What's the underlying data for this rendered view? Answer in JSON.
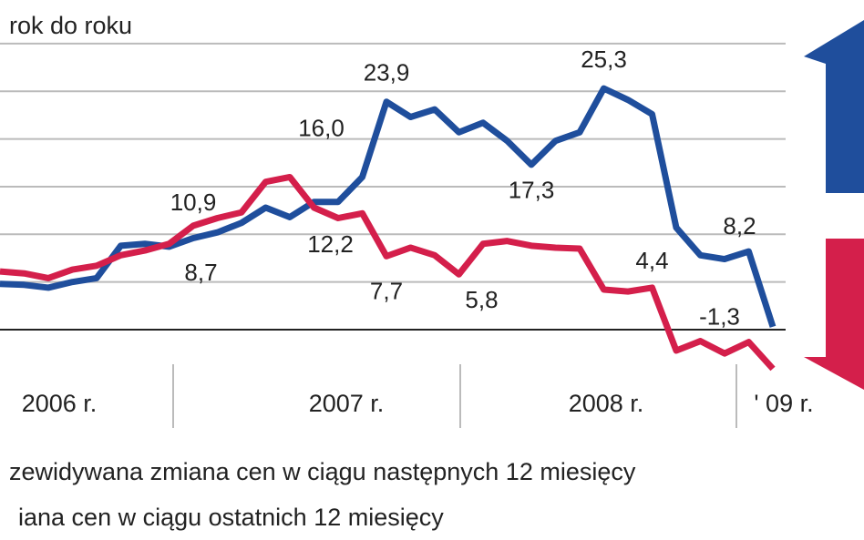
{
  "chart_data": {
    "type": "line",
    "subtitle": "rok do roku",
    "categories": [
      null,
      null,
      null,
      null,
      null,
      null,
      null,
      null,
      null,
      null,
      null,
      null,
      null,
      null,
      null,
      null,
      null,
      null,
      null,
      null,
      null,
      null,
      null,
      null,
      null,
      null,
      null,
      null,
      null,
      null,
      null,
      null,
      null
    ],
    "period_labels": [
      "2006 r.",
      "2007 r.",
      "2008 r.",
      "' 09 r."
    ],
    "series": [
      {
        "name": "zewidywana zmiana cen w ciągu następnych 12 miesięcy",
        "color": "#1f4e9c",
        "values": [
          4.8,
          4.7,
          4.4,
          5.0,
          5.4,
          8.8,
          9.0,
          8.7,
          9.6,
          10.2,
          11.2,
          12.8,
          11.8,
          13.4,
          13.4,
          16.0,
          23.9,
          22.3,
          23.1,
          20.7,
          21.7,
          19.8,
          17.3,
          19.8,
          20.7,
          25.3,
          24.1,
          22.6,
          10.7,
          7.8,
          7.4,
          8.2,
          0.3
        ],
        "value_labels": [
          null,
          null,
          null,
          null,
          null,
          null,
          null,
          "8,7",
          null,
          null,
          null,
          null,
          null,
          null,
          null,
          "16,0",
          "23,9",
          null,
          null,
          null,
          null,
          null,
          "17,3",
          null,
          null,
          "25,3",
          null,
          null,
          null,
          null,
          null,
          "8,2",
          null
        ]
      },
      {
        "name": "iana cen w ciągu ostatnich 12 miesięcy",
        "color": "#d41f4b",
        "values": [
          6.1,
          5.9,
          5.4,
          6.3,
          6.7,
          7.8,
          8.3,
          9.0,
          10.9,
          11.7,
          12.3,
          15.5,
          16.0,
          12.8,
          11.7,
          12.2,
          7.7,
          8.6,
          7.8,
          5.8,
          9.0,
          9.3,
          8.8,
          8.6,
          8.5,
          4.2,
          4.0,
          4.4,
          -2.2,
          -1.2,
          -2.5,
          -1.3,
          -4.1
        ],
        "value_labels": [
          null,
          null,
          null,
          null,
          null,
          null,
          null,
          null,
          "10,9",
          null,
          null,
          null,
          null,
          null,
          null,
          "12,2",
          "7,7",
          null,
          null,
          "5,8",
          null,
          null,
          null,
          null,
          null,
          null,
          null,
          "4,4",
          null,
          null,
          null,
          "-1,3",
          null
        ]
      }
    ],
    "ylim": [
      -5,
      32
    ],
    "yticks": [
      0,
      5,
      10,
      15,
      20,
      25,
      30
    ],
    "grid": true
  }
}
